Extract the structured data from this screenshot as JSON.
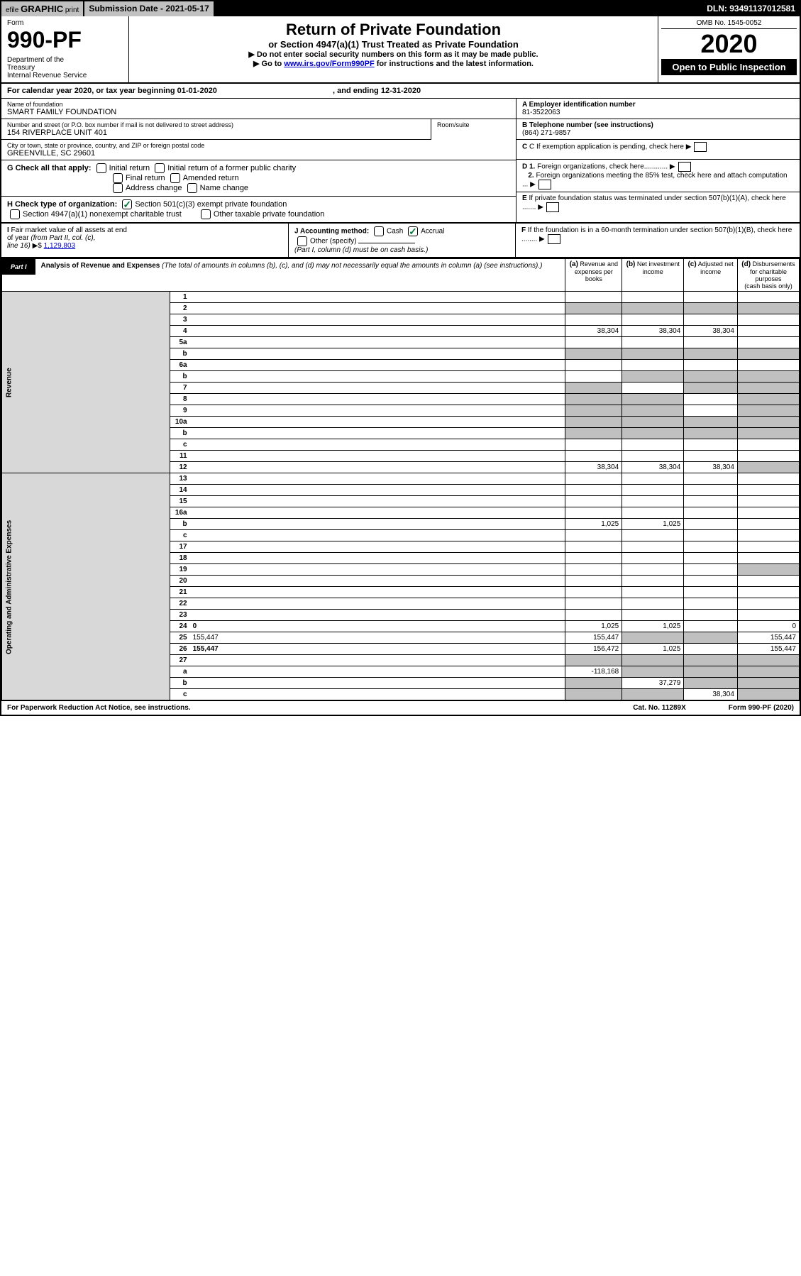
{
  "topbar": {
    "efile_prefix": "efile",
    "efile_main": "GRAPHIC",
    "efile_suffix": "print",
    "submission_label": "Submission Date - ",
    "submission_date": "2021-05-17",
    "dln_label": "DLN: ",
    "dln": "93491137012581"
  },
  "header": {
    "form_label": "Form",
    "form_no": "990-PF",
    "dept": "Department of the Treasury\nInternal Revenue Service",
    "title": "Return of Private Foundation",
    "subtitle": "or Section 4947(a)(1) Trust Treated as Private Foundation",
    "note1": "▶ Do not enter social security numbers on this form as it may be made public.",
    "note2_pre": "▶ Go to ",
    "note2_link": "www.irs.gov/Form990PF",
    "note2_post": " for instructions and the latest information.",
    "omb": "OMB No. 1545-0052",
    "year": "2020",
    "open": "Open to Public Inspection"
  },
  "calendar": {
    "text_pre": "For calendar year 2020, or tax year beginning ",
    "begin": "01-01-2020",
    "text_mid": ", and ending ",
    "end": "12-31-2020"
  },
  "identity": {
    "name_label": "Name of foundation",
    "name": "SMART FAMILY FOUNDATION",
    "addr_label": "Number and street (or P.O. box number if mail is not delivered to street address)",
    "addr": "154 RIVERPLACE UNIT 401",
    "room_label": "Room/suite",
    "city_label": "City or town, state or province, country, and ZIP or foreign postal code",
    "city": "GREENVILLE, SC  29601",
    "ein_label": "A Employer identification number",
    "ein": "81-3522063",
    "phone_label": "B Telephone number (see instructions)",
    "phone": "(864) 271-9857",
    "c_label": "C If exemption application is pending, check here",
    "d1_label": "D 1. Foreign organizations, check here",
    "d2_label": "2. Foreign organizations meeting the 85% test, check here and attach computation",
    "e_label": "E If private foundation status was terminated under section 507(b)(1)(A), check here",
    "f_label": "F If the foundation is in a 60-month termination under section 507(b)(1)(B), check here"
  },
  "checkG": {
    "label": "G Check all that apply:",
    "opts": [
      "Initial return",
      "Initial return of a former public charity",
      "Final return",
      "Amended return",
      "Address change",
      "Name change"
    ]
  },
  "checkH": {
    "label": "H Check type of organization:",
    "opt1": "Section 501(c)(3) exempt private foundation",
    "opt2": "Section 4947(a)(1) nonexempt charitable trust",
    "opt3": "Other taxable private foundation"
  },
  "sectionI": {
    "label": "I Fair market value of all assets at end of year (from Part II, col. (c), line 16) ▶$ ",
    "value": "1,129,803"
  },
  "sectionJ": {
    "label": "J Accounting method:",
    "opt1": "Cash",
    "opt2": "Accrual",
    "opt3": "Other (specify)",
    "note": "(Part I, column (d) must be on cash basis.)"
  },
  "part1": {
    "label": "Part I",
    "title": "Analysis of Revenue and Expenses",
    "desc": "(The total of amounts in columns (b), (c), and (d) may not necessarily equal the amounts in column (a) (see instructions).)",
    "col_a": "(a) Revenue and expenses per books",
    "col_b": "(b) Net investment income",
    "col_c": "(c) Adjusted net income",
    "col_d": "(d) Disbursements for charitable purposes (cash basis only)"
  },
  "section_labels": {
    "revenue": "Revenue",
    "expenses": "Operating and Administrative Expenses"
  },
  "lines": [
    {
      "n": "1",
      "d": "",
      "a": "",
      "b": "",
      "c": ""
    },
    {
      "n": "2",
      "d": "",
      "a": "",
      "b": "",
      "c": ""
    },
    {
      "n": "3",
      "d": "",
      "a": "",
      "b": "",
      "c": ""
    },
    {
      "n": "4",
      "d": "",
      "a": "38,304",
      "b": "38,304",
      "c": "38,304"
    },
    {
      "n": "5a",
      "d": "",
      "a": "",
      "b": "",
      "c": ""
    },
    {
      "n": "b",
      "d": "",
      "a": "",
      "b": "",
      "c": ""
    },
    {
      "n": "6a",
      "d": "",
      "a": "",
      "b": "",
      "c": ""
    },
    {
      "n": "b",
      "d": "",
      "a": "",
      "b": "",
      "c": ""
    },
    {
      "n": "7",
      "d": "",
      "a": "",
      "b": "",
      "c": ""
    },
    {
      "n": "8",
      "d": "",
      "a": "",
      "b": "",
      "c": ""
    },
    {
      "n": "9",
      "d": "",
      "a": "",
      "b": "",
      "c": ""
    },
    {
      "n": "10a",
      "d": "",
      "a": "",
      "b": "",
      "c": ""
    },
    {
      "n": "b",
      "d": "",
      "a": "",
      "b": "",
      "c": ""
    },
    {
      "n": "c",
      "d": "",
      "a": "",
      "b": "",
      "c": ""
    },
    {
      "n": "11",
      "d": "",
      "a": "",
      "b": "",
      "c": ""
    },
    {
      "n": "12",
      "d": "",
      "a": "38,304",
      "b": "38,304",
      "c": "38,304",
      "bold": true
    }
  ],
  "exp_lines": [
    {
      "n": "13",
      "d": "",
      "a": "",
      "b": "",
      "c": ""
    },
    {
      "n": "14",
      "d": "",
      "a": "",
      "b": "",
      "c": ""
    },
    {
      "n": "15",
      "d": "",
      "a": "",
      "b": "",
      "c": ""
    },
    {
      "n": "16a",
      "d": "",
      "a": "",
      "b": "",
      "c": ""
    },
    {
      "n": "b",
      "d": "",
      "a": "1,025",
      "b": "1,025",
      "c": ""
    },
    {
      "n": "c",
      "d": "",
      "a": "",
      "b": "",
      "c": ""
    },
    {
      "n": "17",
      "d": "",
      "a": "",
      "b": "",
      "c": ""
    },
    {
      "n": "18",
      "d": "",
      "a": "",
      "b": "",
      "c": ""
    },
    {
      "n": "19",
      "d": "",
      "a": "",
      "b": "",
      "c": ""
    },
    {
      "n": "20",
      "d": "",
      "a": "",
      "b": "",
      "c": ""
    },
    {
      "n": "21",
      "d": "",
      "a": "",
      "b": "",
      "c": ""
    },
    {
      "n": "22",
      "d": "",
      "a": "",
      "b": "",
      "c": ""
    },
    {
      "n": "23",
      "d": "",
      "a": "",
      "b": "",
      "c": ""
    },
    {
      "n": "24",
      "d": "0",
      "a": "1,025",
      "b": "1,025",
      "c": "",
      "bold": true
    },
    {
      "n": "25",
      "d": "155,447",
      "a": "155,447",
      "b": "",
      "c": ""
    },
    {
      "n": "26",
      "d": "155,447",
      "a": "156,472",
      "b": "1,025",
      "c": "",
      "bold": true
    },
    {
      "n": "27",
      "d": "",
      "a": "",
      "b": "",
      "c": ""
    },
    {
      "n": "a",
      "d": "",
      "a": "-118,168",
      "b": "",
      "c": "",
      "bold": true
    },
    {
      "n": "b",
      "d": "",
      "a": "",
      "b": "37,279",
      "c": "",
      "bold": true
    },
    {
      "n": "c",
      "d": "",
      "a": "",
      "b": "",
      "c": "38,304",
      "bold": true
    }
  ],
  "grey_cells": {
    "rev": {
      "2": [
        "a",
        "b",
        "c",
        "d"
      ],
      "b": [
        "a",
        "b",
        "c",
        "d"
      ],
      "6ab": [
        "b",
        "c",
        "d"
      ],
      "7": [
        "a",
        "c",
        "d"
      ],
      "8": [
        "a",
        "b",
        "d"
      ],
      "9": [
        "a",
        "b",
        "d"
      ],
      "10a": [
        "a",
        "b",
        "c",
        "d"
      ],
      "10b": [
        "a",
        "b",
        "c",
        "d"
      ],
      "12": [
        "d"
      ]
    },
    "exp": {
      "19": [
        "d"
      ],
      "25": [
        "b",
        "c"
      ],
      "27": [
        "a",
        "b",
        "c",
        "d"
      ],
      "a": [
        "b",
        "c",
        "d"
      ],
      "b": [
        "a",
        "c",
        "d"
      ],
      "c": [
        "a",
        "b",
        "d"
      ]
    }
  },
  "footer": {
    "left": "For Paperwork Reduction Act Notice, see instructions.",
    "mid": "Cat. No. 11289X",
    "right": "Form 990-PF (2020)"
  },
  "colors": {
    "link": "#0000cc",
    "check_green": "#0a7a3a",
    "grey_bg": "#c0c0c0",
    "vert_bg": "#d8d8d8"
  }
}
